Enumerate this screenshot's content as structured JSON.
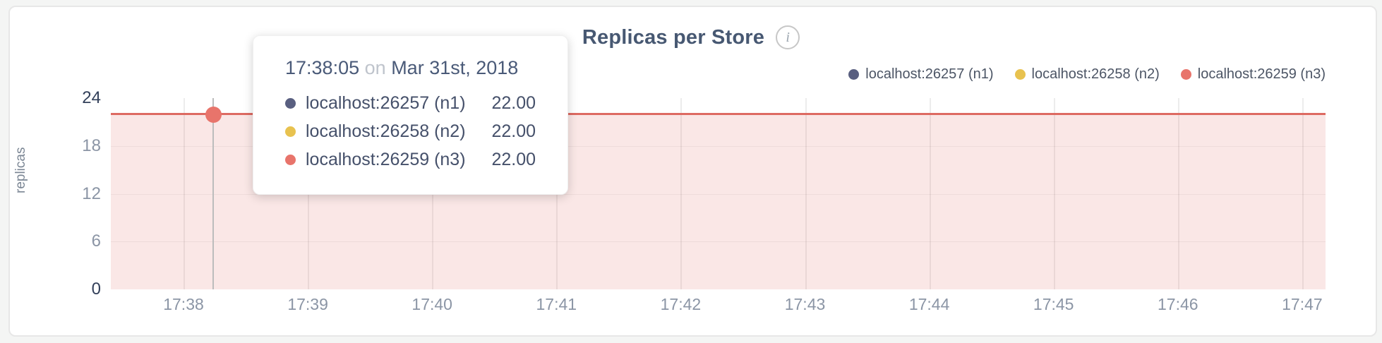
{
  "panel": {
    "title": "Replicas per Store",
    "info_icon_glyph": "i"
  },
  "colors": {
    "accent_line": "#dd6a62",
    "area_fill": "#eee0d9",
    "series_n1": "#595f80",
    "series_n2": "#e8c24f",
    "series_n3": "#e8746b"
  },
  "legend": {
    "items": [
      {
        "label": "localhost:26257 (n1)",
        "color": "#595f80"
      },
      {
        "label": "localhost:26258 (n2)",
        "color": "#e8c24f"
      },
      {
        "label": "localhost:26259 (n3)",
        "color": "#e8746b"
      }
    ]
  },
  "tooltip": {
    "time": "17:38:05",
    "connector": "on",
    "date": "Mar 31st, 2018",
    "rows": [
      {
        "label": "localhost:26257 (n1)",
        "value": "22.00",
        "color": "#595f80"
      },
      {
        "label": "localhost:26258 (n2)",
        "value": "22.00",
        "color": "#e8c24f"
      },
      {
        "label": "localhost:26259 (n3)",
        "value": "22.00",
        "color": "#e8746b"
      }
    ]
  },
  "chart_data": {
    "type": "area",
    "title": "Replicas per Store",
    "xlabel": "",
    "ylabel": "replicas",
    "x": [
      "17:38",
      "17:39",
      "17:40",
      "17:41",
      "17:42",
      "17:43",
      "17:44",
      "17:45",
      "17:46",
      "17:47"
    ],
    "y_ticks": [
      0,
      6,
      12,
      18,
      24
    ],
    "ylim": [
      0,
      24
    ],
    "grid": true,
    "legend_position": "top-right",
    "series": [
      {
        "name": "localhost:26257 (n1)",
        "color": "#595f80",
        "values": [
          22,
          22,
          22,
          22,
          22,
          22,
          22,
          22,
          22,
          22
        ]
      },
      {
        "name": "localhost:26258 (n2)",
        "color": "#e8c24f",
        "values": [
          22,
          22,
          22,
          22,
          22,
          22,
          22,
          22,
          22,
          22
        ]
      },
      {
        "name": "localhost:26259 (n3)",
        "color": "#e8746b",
        "values": [
          22,
          22,
          22,
          22,
          22,
          22,
          22,
          22,
          22,
          22
        ]
      }
    ],
    "hover_point": {
      "time": "17:38:05",
      "value": 22,
      "x_fraction": 0.0843
    }
  }
}
